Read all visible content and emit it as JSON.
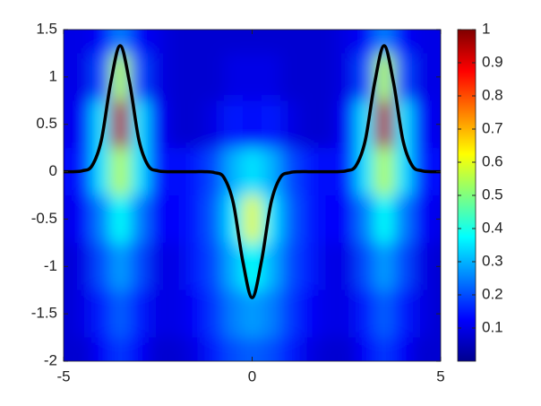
{
  "chart_data": {
    "type": "heatmap-line",
    "xlim": [
      -5,
      5
    ],
    "xticks": [
      -5,
      0,
      5
    ],
    "ylim": [
      -2,
      1.5
    ],
    "yticks": [
      -2,
      -1.5,
      -1,
      -0.5,
      0,
      0.5,
      1,
      1.5
    ],
    "colormap": "jet",
    "clim": [
      0,
      1
    ],
    "cticks": [
      0.1,
      0.2,
      0.3,
      0.4,
      0.5,
      0.6,
      0.7,
      0.8,
      0.9,
      1
    ],
    "zx": [
      -5,
      -4.5,
      -4,
      -3.5,
      -3,
      -2.5,
      -2,
      -1.5,
      -1,
      -0.5,
      0,
      0.5,
      1,
      1.5,
      2,
      2.5,
      3,
      3.5,
      4,
      4.5,
      5
    ],
    "zy": [
      1.5,
      1,
      0.5,
      0,
      -0.5,
      -1,
      -1.5,
      -2
    ],
    "z": [
      [
        0.1,
        0.1,
        0.12,
        0.25,
        0.12,
        0.1,
        0.08,
        0.08,
        0.08,
        0.08,
        0.08,
        0.08,
        0.08,
        0.08,
        0.08,
        0.1,
        0.12,
        0.25,
        0.12,
        0.1,
        0.1
      ],
      [
        0.1,
        0.1,
        0.2,
        0.55,
        0.2,
        0.1,
        0.08,
        0.08,
        0.08,
        0.1,
        0.1,
        0.1,
        0.08,
        0.08,
        0.08,
        0.1,
        0.2,
        0.55,
        0.2,
        0.1,
        0.1
      ],
      [
        0.1,
        0.12,
        0.35,
        0.95,
        0.35,
        0.12,
        0.08,
        0.08,
        0.1,
        0.15,
        0.12,
        0.15,
        0.1,
        0.08,
        0.08,
        0.12,
        0.35,
        0.95,
        0.35,
        0.12,
        0.1
      ],
      [
        0.12,
        0.15,
        0.35,
        0.55,
        0.35,
        0.15,
        0.12,
        0.15,
        0.2,
        0.3,
        0.35,
        0.3,
        0.2,
        0.15,
        0.12,
        0.15,
        0.35,
        0.55,
        0.35,
        0.15,
        0.12
      ],
      [
        0.1,
        0.12,
        0.25,
        0.38,
        0.25,
        0.12,
        0.12,
        0.15,
        0.22,
        0.35,
        0.6,
        0.35,
        0.22,
        0.15,
        0.12,
        0.12,
        0.25,
        0.38,
        0.25,
        0.12,
        0.1
      ],
      [
        0.08,
        0.1,
        0.2,
        0.28,
        0.2,
        0.1,
        0.1,
        0.15,
        0.2,
        0.3,
        0.38,
        0.3,
        0.2,
        0.15,
        0.1,
        0.1,
        0.2,
        0.28,
        0.2,
        0.1,
        0.08
      ],
      [
        0.08,
        0.1,
        0.15,
        0.22,
        0.15,
        0.1,
        0.1,
        0.12,
        0.18,
        0.25,
        0.28,
        0.25,
        0.18,
        0.12,
        0.1,
        0.1,
        0.15,
        0.22,
        0.15,
        0.1,
        0.08
      ],
      [
        0.08,
        0.08,
        0.12,
        0.18,
        0.12,
        0.08,
        0.08,
        0.1,
        0.15,
        0.2,
        0.22,
        0.2,
        0.15,
        0.1,
        0.08,
        0.08,
        0.12,
        0.18,
        0.12,
        0.08,
        0.08
      ]
    ],
    "line": {
      "color": "#000000",
      "x": [
        -5,
        -4.75,
        -4.5,
        -4.25,
        -4,
        -3.75,
        -3.5,
        -3.25,
        -3,
        -2.75,
        -2.5,
        -2.25,
        -2,
        -1.75,
        -1.5,
        -1.25,
        -1,
        -0.75,
        -0.5,
        -0.25,
        0,
        0.25,
        0.5,
        0.75,
        1,
        1.25,
        1.5,
        1.75,
        2,
        2.25,
        2.5,
        2.75,
        3,
        3.25,
        3.5,
        3.75,
        4,
        4.25,
        4.5,
        4.75,
        5
      ],
      "y": [
        0,
        0,
        0.01,
        0.06,
        0.33,
        0.94,
        1.33,
        0.94,
        0.33,
        0.06,
        0.01,
        0,
        0,
        0,
        0,
        0,
        -0.01,
        -0.06,
        -0.33,
        -0.94,
        -1.33,
        -0.94,
        -0.33,
        -0.06,
        -0.01,
        0,
        0,
        0,
        0,
        0,
        0.01,
        0.06,
        0.33,
        0.94,
        1.33,
        0.94,
        0.33,
        0.06,
        0.01,
        0,
        0
      ]
    }
  }
}
